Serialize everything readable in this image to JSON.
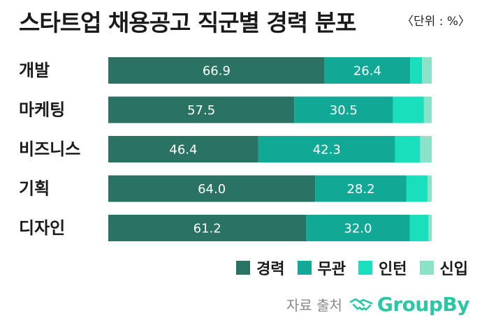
{
  "header": {
    "title": "스타트업 채용공고 직군별 경력 분포",
    "unit": "〈단위 : %〉"
  },
  "source": {
    "label": "자료 출처",
    "brand": "GroupBy",
    "brand_icon": "handshake-icon"
  },
  "colors": {
    "경력": "#2a7362",
    "무관": "#12a896",
    "인턴": "#19dfbc",
    "신입": "#8ae2c8"
  },
  "chart_data": {
    "type": "bar",
    "orientation": "horizontal",
    "stacked": true,
    "categories": [
      "개발",
      "마케팅",
      "비즈니스",
      "기획",
      "디자인"
    ],
    "series": [
      {
        "name": "경력",
        "values": [
          66.9,
          57.5,
          46.4,
          64.0,
          61.2
        ],
        "labels": [
          "66.9",
          "57.5",
          "46.4",
          "64.0",
          "61.2"
        ]
      },
      {
        "name": "무관",
        "values": [
          26.4,
          30.5,
          42.3,
          28.2,
          32.0
        ],
        "labels": [
          "26.4",
          "30.5",
          "42.3",
          "28.2",
          "32.0"
        ]
      },
      {
        "name": "인턴",
        "values": [
          3.7,
          9.6,
          7.7,
          6.5,
          5.8
        ]
      },
      {
        "name": "신입",
        "values": [
          3.0,
          2.4,
          3.6,
          1.3,
          1.0
        ]
      }
    ],
    "xlim": [
      0,
      100
    ],
    "grid": false,
    "legend": "bottom-right"
  }
}
